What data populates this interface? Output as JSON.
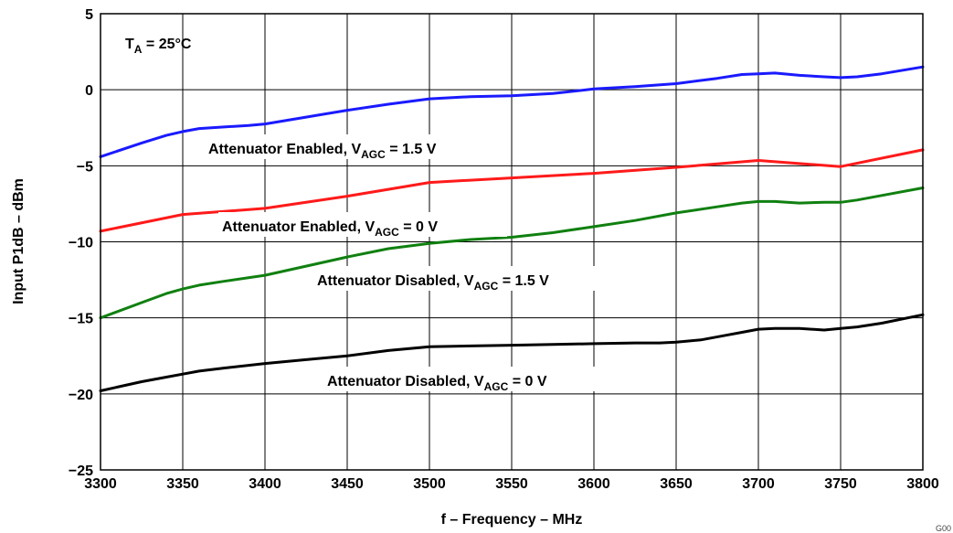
{
  "chart_data": {
    "type": "line",
    "xlabel": "f – Frequency – MHz",
    "ylabel": "Input P1dB – dBm",
    "xlim": [
      3300,
      3800
    ],
    "ylim": [
      -25,
      5
    ],
    "x_ticks": [
      3300,
      3350,
      3400,
      3450,
      3500,
      3550,
      3600,
      3650,
      3700,
      3750,
      3800
    ],
    "y_ticks": [
      5,
      0,
      -5,
      -10,
      -15,
      -20,
      -25
    ],
    "grid": true,
    "condition": {
      "main": "T",
      "sub": "A",
      "rest": " = 25°C"
    },
    "corner_code": "G00",
    "series": [
      {
        "name": "Attenuator Enabled, VAGC = 1.5 V",
        "label_main": "Attenuator Enabled, V",
        "label_sub": "AGC",
        "label_rest": " = 1.5 V",
        "color": "#1a1aff",
        "x": [
          3300,
          3325,
          3340,
          3350,
          3360,
          3375,
          3390,
          3400,
          3425,
          3450,
          3475,
          3500,
          3525,
          3550,
          3575,
          3600,
          3625,
          3650,
          3675,
          3690,
          3700,
          3710,
          3725,
          3740,
          3750,
          3760,
          3775,
          3800
        ],
        "values": [
          -4.4,
          -3.5,
          -3.0,
          -2.75,
          -2.55,
          -2.45,
          -2.35,
          -2.25,
          -1.8,
          -1.35,
          -0.95,
          -0.6,
          -0.45,
          -0.4,
          -0.25,
          0.05,
          0.2,
          0.4,
          0.75,
          1.0,
          1.05,
          1.1,
          0.95,
          0.85,
          0.8,
          0.85,
          1.05,
          1.5
        ]
      },
      {
        "name": "Attenuator Enabled, VAGC = 0 V",
        "label_main": "Attenuator Enabled, V",
        "label_sub": "AGC",
        "label_rest": " = 0 V",
        "color": "#ff1a1a",
        "x": [
          3300,
          3350,
          3400,
          3450,
          3500,
          3550,
          3600,
          3650,
          3700,
          3750,
          3800
        ],
        "values": [
          -9.3,
          -8.2,
          -7.8,
          -7.0,
          -6.1,
          -5.8,
          -5.5,
          -5.1,
          -4.65,
          -5.05,
          -3.95
        ]
      },
      {
        "name": "Attenuator Disabled, VAGC = 1.5 V",
        "label_main": "Attenuator Disabled, V",
        "label_sub": "AGC",
        "label_rest": " = 1.5 V",
        "color": "#108010",
        "x": [
          3300,
          3325,
          3340,
          3350,
          3360,
          3375,
          3400,
          3425,
          3450,
          3475,
          3500,
          3525,
          3550,
          3575,
          3600,
          3625,
          3650,
          3675,
          3690,
          3700,
          3710,
          3725,
          3740,
          3750,
          3760,
          3775,
          3800
        ],
        "values": [
          -15.0,
          -14.0,
          -13.4,
          -13.1,
          -12.85,
          -12.6,
          -12.2,
          -11.6,
          -11.0,
          -10.45,
          -10.1,
          -9.85,
          -9.7,
          -9.4,
          -9.0,
          -8.6,
          -8.1,
          -7.7,
          -7.45,
          -7.35,
          -7.35,
          -7.45,
          -7.4,
          -7.4,
          -7.25,
          -6.95,
          -6.45
        ]
      },
      {
        "name": "Attenuator Disabled, VAGC = 0 V",
        "label_main": "Attenuator Disabled, V",
        "label_sub": "AGC",
        "label_rest": " = 0 V",
        "color": "#000000",
        "x": [
          3300,
          3325,
          3340,
          3350,
          3360,
          3375,
          3400,
          3425,
          3450,
          3475,
          3500,
          3525,
          3550,
          3575,
          3600,
          3625,
          3640,
          3650,
          3665,
          3680,
          3690,
          3700,
          3710,
          3725,
          3740,
          3750,
          3760,
          3775,
          3800
        ],
        "values": [
          -19.8,
          -19.2,
          -18.9,
          -18.7,
          -18.5,
          -18.3,
          -18.0,
          -17.75,
          -17.5,
          -17.15,
          -16.9,
          -16.85,
          -16.8,
          -16.75,
          -16.7,
          -16.65,
          -16.65,
          -16.6,
          -16.45,
          -16.15,
          -15.95,
          -15.75,
          -15.7,
          -15.7,
          -15.8,
          -15.7,
          -15.6,
          -15.35,
          -14.8
        ]
      }
    ]
  }
}
